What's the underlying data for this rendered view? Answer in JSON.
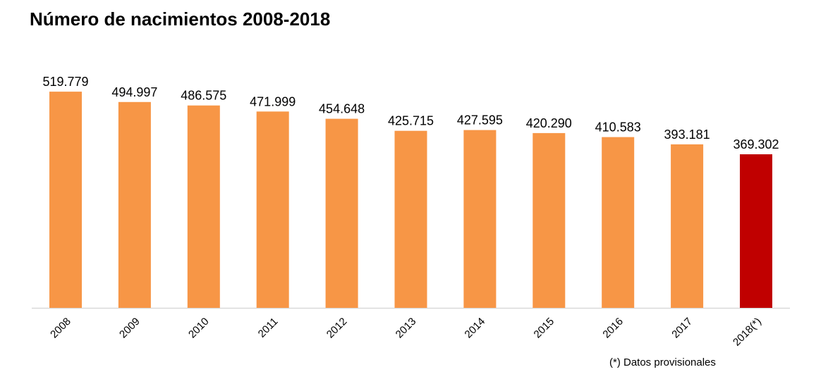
{
  "chart_data": {
    "type": "bar",
    "title": "Número de nacimientos 2008-2018",
    "categories": [
      "2008",
      "2009",
      "2010",
      "2011",
      "2012",
      "2013",
      "2014",
      "2015",
      "2016",
      "2017",
      "2018(*)"
    ],
    "values": [
      519779,
      494997,
      486575,
      471999,
      454648,
      425715,
      427595,
      420290,
      410583,
      393181,
      369302
    ],
    "value_labels": [
      "519.779",
      "494.997",
      "486.575",
      "471.999",
      "454.648",
      "425.715",
      "427.595",
      "420.290",
      "410.583",
      "393.181",
      "369.302"
    ],
    "footnote": "(*) Datos provisionales",
    "xlabel": "",
    "ylabel": "",
    "ylim": [
      0,
      520000
    ],
    "grid": false,
    "colors": {
      "bar": "#F79646",
      "highlight": "#C00000",
      "axis": "#D9D9D9"
    },
    "highlight_index": 10
  }
}
